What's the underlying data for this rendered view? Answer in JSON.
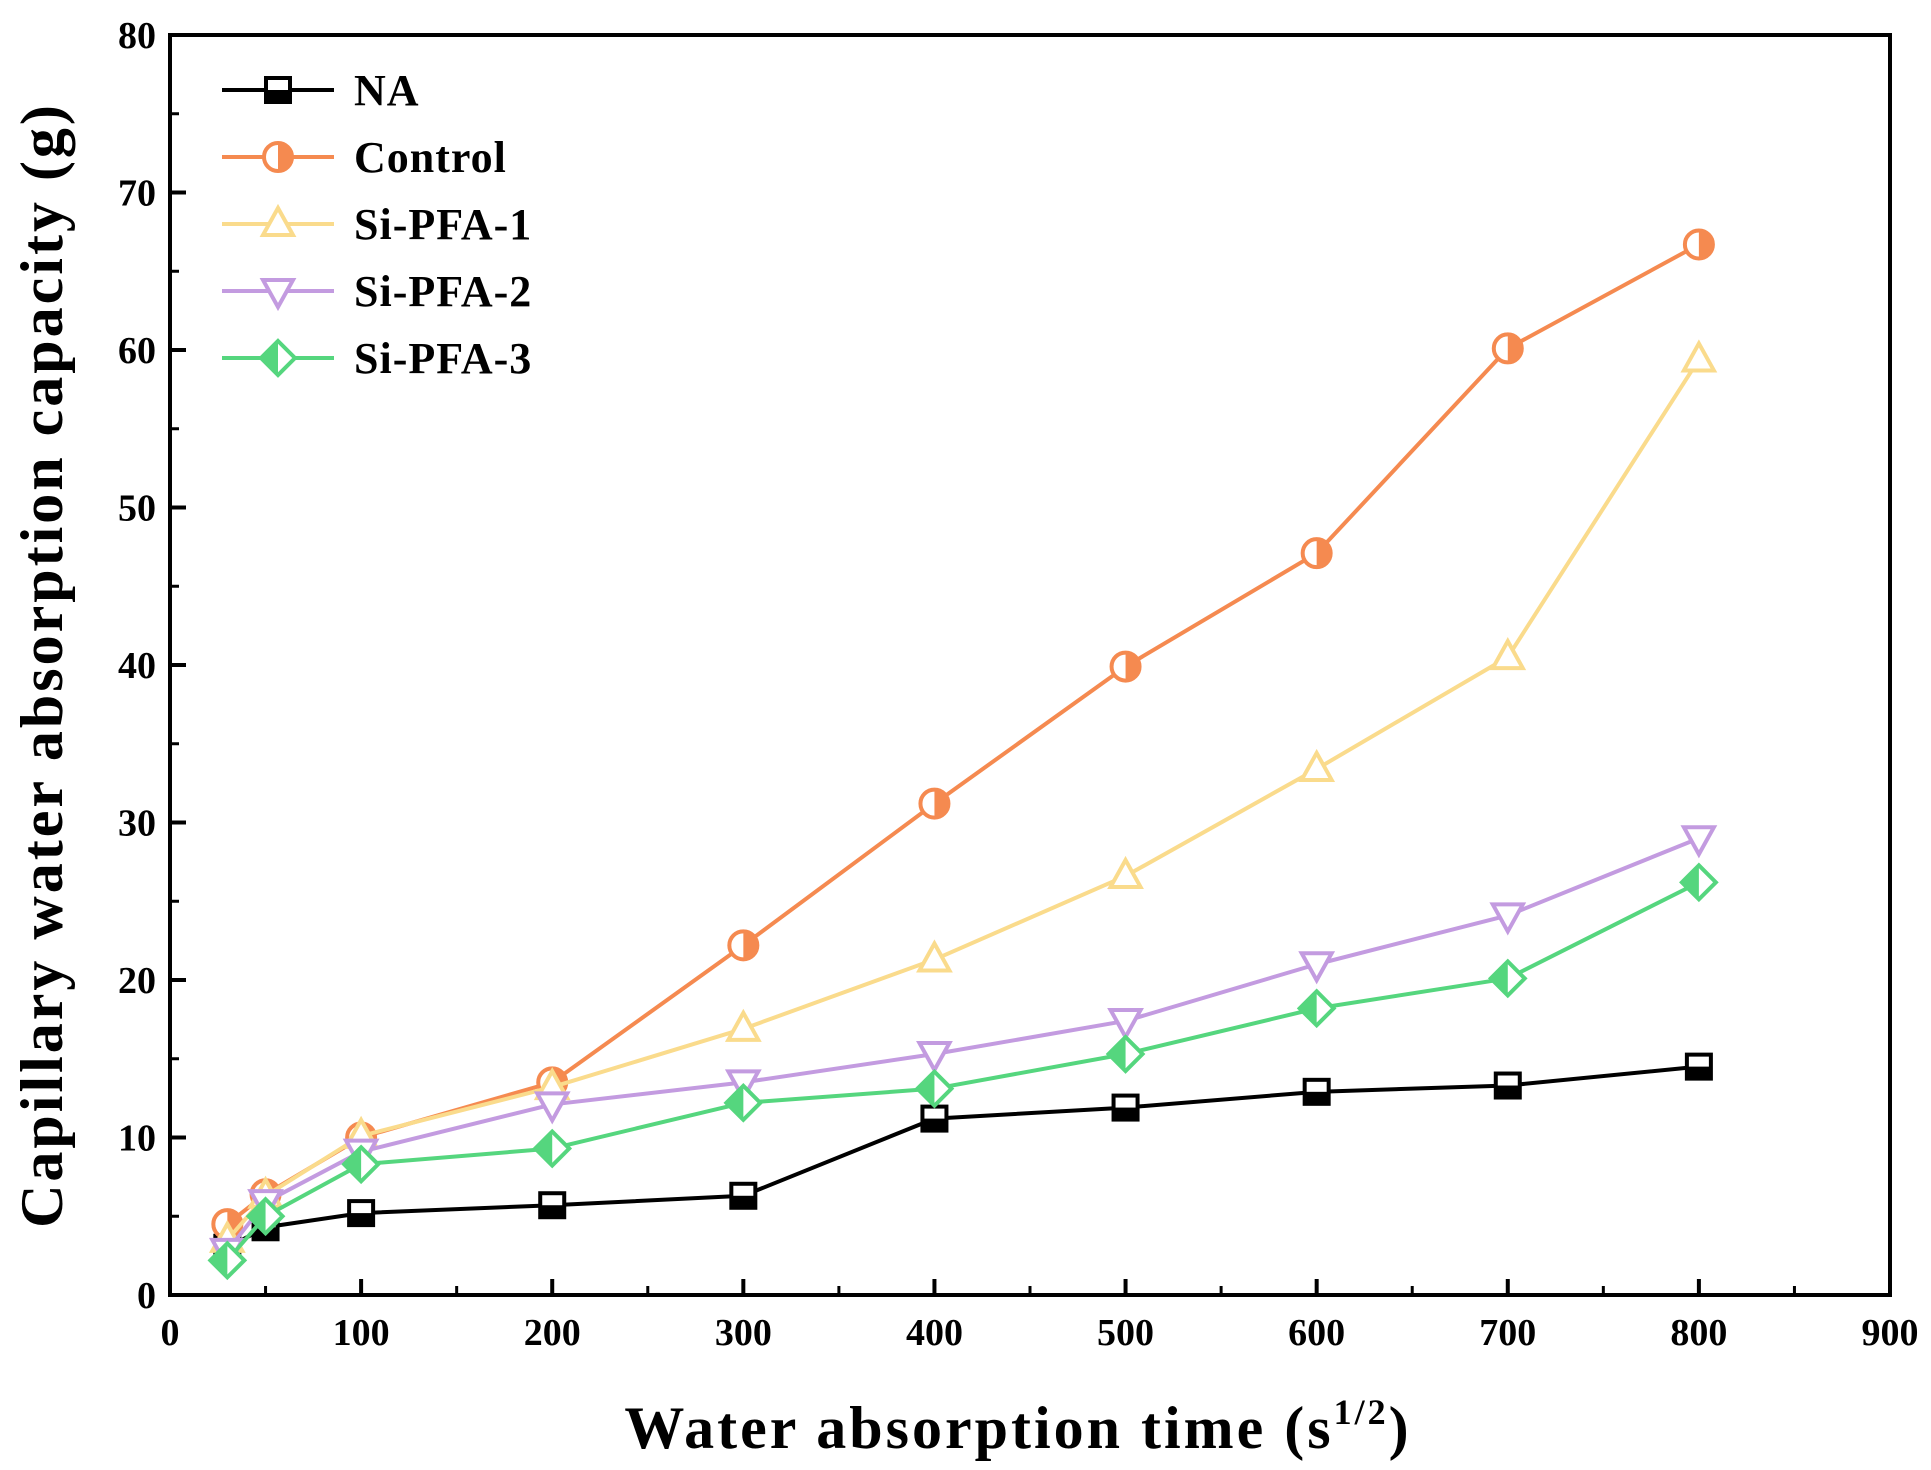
{
  "chart_data": {
    "type": "line",
    "title": "",
    "xlabel": {
      "main": "Water absorption time (s",
      "superscript": "1/2",
      "close": ")"
    },
    "ylabel": "Capillary water absorption capacity (g)",
    "xlim": [
      0,
      900
    ],
    "ylim": [
      0,
      80
    ],
    "xticks": [
      0,
      100,
      200,
      300,
      400,
      500,
      600,
      700,
      800,
      900
    ],
    "yticks": [
      0,
      10,
      20,
      30,
      40,
      50,
      60,
      70,
      80
    ],
    "x": [
      30,
      50,
      100,
      200,
      300,
      400,
      500,
      600,
      700,
      800
    ],
    "legend_position": "top-left",
    "series": [
      {
        "name": "NA",
        "color": "#000000",
        "marker": "square-half",
        "values": [
          3.0,
          4.3,
          5.2,
          5.7,
          6.3,
          11.2,
          11.9,
          12.9,
          13.3,
          14.5
        ]
      },
      {
        "name": "Control",
        "color": "#F58A50",
        "marker": "circle-half",
        "values": [
          4.5,
          6.4,
          10.0,
          13.5,
          22.2,
          31.2,
          39.9,
          47.1,
          60.1,
          66.7
        ]
      },
      {
        "name": "Si-PFA-1",
        "color": "#FADB8C",
        "marker": "triangle-up",
        "values": [
          3.5,
          6.3,
          10.1,
          13.2,
          16.9,
          21.3,
          26.6,
          33.4,
          40.5,
          59.4
        ]
      },
      {
        "name": "Si-PFA-2",
        "color": "#C39BE0",
        "marker": "triangle-down",
        "values": [
          2.8,
          5.9,
          9.1,
          12.1,
          13.5,
          15.3,
          17.4,
          21.0,
          24.1,
          29.0
        ]
      },
      {
        "name": "Si-PFA-3",
        "color": "#55D67E",
        "marker": "diamond-half",
        "values": [
          2.2,
          5.0,
          8.3,
          9.3,
          12.2,
          13.1,
          15.3,
          18.2,
          20.1,
          26.2
        ]
      }
    ]
  }
}
